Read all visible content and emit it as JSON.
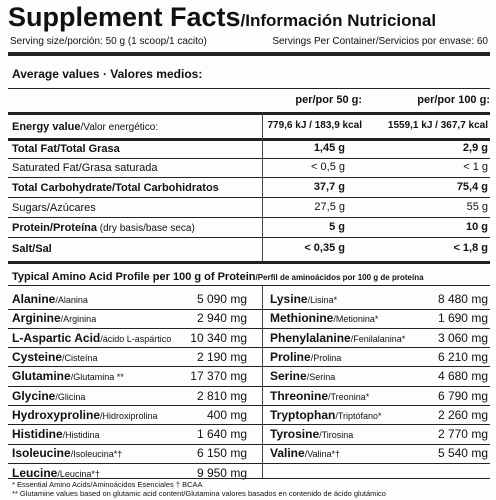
{
  "header": {
    "title": "Supplement Facts",
    "subtitle": "/Información Nutricional",
    "serving_size": "Serving size/porción: 50 g (1 scoop/1 cacito)",
    "servings_per_container": "Servings Per Container/Servicios por envase: 60"
  },
  "nutrition": {
    "heading": "Average values · Valores medios:",
    "columns": [
      "per/por 50 g:",
      "per/por 100 g:"
    ],
    "rows": [
      {
        "label": "Energy value",
        "note": "/Valor energético:",
        "values": [
          "779,6 kJ / 183,9 kcal",
          "1559,1 kJ / 367,7 kcal"
        ],
        "bold": true
      },
      {
        "label": "Total Fat/Total Grasa",
        "values": [
          "1,45 g",
          "2,9 g"
        ],
        "bold": true
      },
      {
        "label": "Saturated Fat/Grasa saturada",
        "values": [
          "< 0,5 g",
          "< 1 g"
        ],
        "bold": false
      },
      {
        "label": "Total Carbohydrate/Total Carbohidratos",
        "values": [
          "37,7 g",
          "75,4 g"
        ],
        "bold": true
      },
      {
        "label": "Sugars/Azúcares",
        "values": [
          "27,5 g",
          "55 g"
        ],
        "bold": false
      },
      {
        "label": "Protein/Proteína",
        "note": " (dry basis/base seca)",
        "values": [
          "5 g",
          "10 g"
        ],
        "bold": true
      },
      {
        "label": "Salt/Sal",
        "values": [
          "< 0,35 g",
          "< 1,8 g"
        ],
        "bold": true
      }
    ]
  },
  "amino_acids": {
    "title": "Typical Amino Acid Profile per 100 g of Protein",
    "subtitle": "/Perfil de aminoácidos por 100 g de proteína",
    "left": [
      {
        "name": "Alanine",
        "local": "/Alanina",
        "value": "5 090 mg"
      },
      {
        "name": "Arginine",
        "local": "/Arginina",
        "value": "2 940 mg"
      },
      {
        "name": "L-Aspartic Acid",
        "local": "/ácido L-aspártico",
        "value": "10 340 mg"
      },
      {
        "name": "Cysteine",
        "local": "/Cisteína",
        "value": "2 190 mg"
      },
      {
        "name": "Glutamine",
        "local": "/Glutamina **",
        "value": "17 370 mg"
      },
      {
        "name": "Glycine",
        "local": "/Glicina",
        "value": "2 810 mg"
      },
      {
        "name": "Hydroxyproline",
        "local": "/Hidroxiprolina",
        "value": "400 mg"
      },
      {
        "name": "Histidine",
        "local": "/Histidina",
        "value": "1 640 mg"
      },
      {
        "name": "Isoleucine",
        "local": "/Isoleucina*†",
        "value": "6 150 mg"
      },
      {
        "name": "Leucine",
        "local": "/Leucina*†",
        "value": "9 950 mg"
      }
    ],
    "right": [
      {
        "name": "Lysine",
        "local": "/Lisina*",
        "value": "8 480 mg"
      },
      {
        "name": "Methionine",
        "local": "/Metionina*",
        "value": "1 690 mg"
      },
      {
        "name": "Phenylalanine",
        "local": "/Fenilalanina*",
        "value": "3 060 mg"
      },
      {
        "name": "Proline",
        "local": "/Prolina",
        "value": "6 210 mg"
      },
      {
        "name": "Serine",
        "local": "/Serina",
        "value": "4 680 mg"
      },
      {
        "name": "Threonine",
        "local": "/Treonina*",
        "value": "6 790 mg"
      },
      {
        "name": "Tryptophan",
        "local": "/Triptófano*",
        "value": "2 260 mg"
      },
      {
        "name": "Tyrosine",
        "local": "/Tirosina",
        "value": "2 770 mg"
      },
      {
        "name": "Valine",
        "local": "/Valina*†",
        "value": "5 540 mg"
      }
    ]
  },
  "footnotes": [
    "* Essential Amino Acids/Aminoácidos Esenciales   † BCAA",
    "** Glutamine values based on glutamic acid content/Glutamina valores basados en contenido de ácido glutámico"
  ]
}
